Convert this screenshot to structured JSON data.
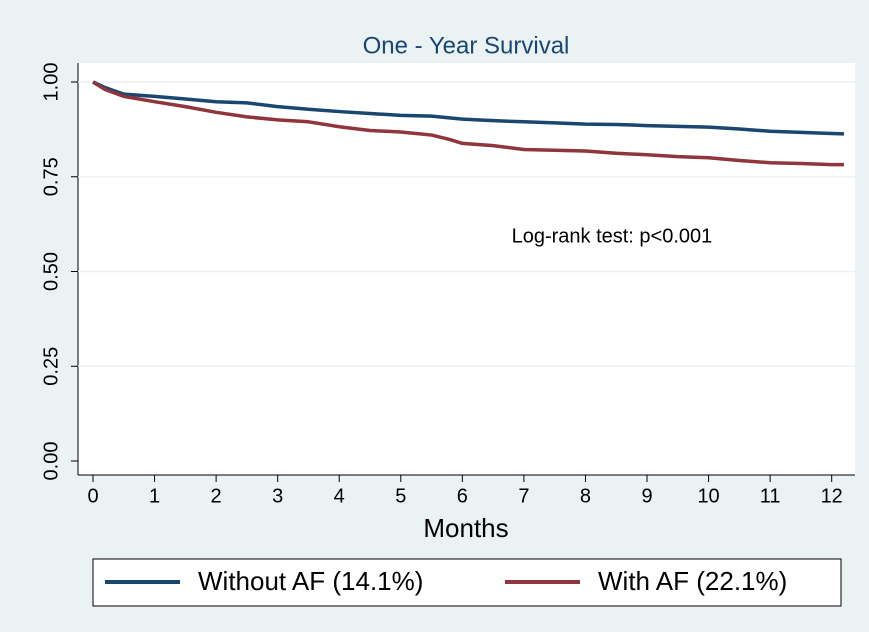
{
  "chart_data": {
    "type": "line",
    "title": "One - Year Survival",
    "xlabel": "Months",
    "annotation": {
      "text": "Log-rank test: p<0.001",
      "x": 6.8,
      "y": 0.59
    },
    "xlim": [
      0,
      12.2
    ],
    "ylim": [
      0,
      1
    ],
    "xticks": [
      0,
      1,
      2,
      3,
      4,
      5,
      6,
      7,
      8,
      9,
      10,
      11,
      12
    ],
    "yticks": [
      {
        "value": 0,
        "label": "0.00"
      },
      {
        "value": 0.25,
        "label": "0.25"
      },
      {
        "value": 0.5,
        "label": "0.50"
      },
      {
        "value": 0.75,
        "label": "0.75"
      },
      {
        "value": 1,
        "label": "1.00"
      }
    ],
    "grid": true,
    "legend": "bottom",
    "series": [
      {
        "name": "Without AF (14.1%)",
        "color": "#1a476f",
        "x": [
          0,
          0.2,
          0.5,
          1,
          1.5,
          2,
          2.5,
          3,
          3.5,
          4,
          4.5,
          5,
          5.5,
          6,
          6.5,
          7,
          7.5,
          8,
          8.5,
          9,
          9.5,
          10,
          10.5,
          11,
          11.5,
          12,
          12.2
        ],
        "values": [
          1.0,
          0.985,
          0.968,
          0.962,
          0.955,
          0.948,
          0.945,
          0.935,
          0.928,
          0.922,
          0.917,
          0.912,
          0.91,
          0.902,
          0.898,
          0.895,
          0.892,
          0.889,
          0.888,
          0.885,
          0.883,
          0.881,
          0.876,
          0.87,
          0.867,
          0.864,
          0.863
        ]
      },
      {
        "name": "With AF (22.1%)",
        "color": "#90353b",
        "x": [
          0,
          0.2,
          0.5,
          1,
          1.5,
          2,
          2.5,
          3,
          3.5,
          4,
          4.5,
          5,
          5.5,
          5.8,
          6,
          6.5,
          7,
          7.5,
          8,
          8.5,
          9,
          9.5,
          10,
          10.5,
          11,
          11.5,
          12,
          12.2
        ],
        "values": [
          1.0,
          0.98,
          0.962,
          0.948,
          0.935,
          0.92,
          0.908,
          0.9,
          0.895,
          0.882,
          0.872,
          0.868,
          0.86,
          0.848,
          0.838,
          0.832,
          0.822,
          0.82,
          0.818,
          0.812,
          0.808,
          0.803,
          0.8,
          0.793,
          0.787,
          0.785,
          0.782,
          0.782
        ]
      }
    ]
  }
}
